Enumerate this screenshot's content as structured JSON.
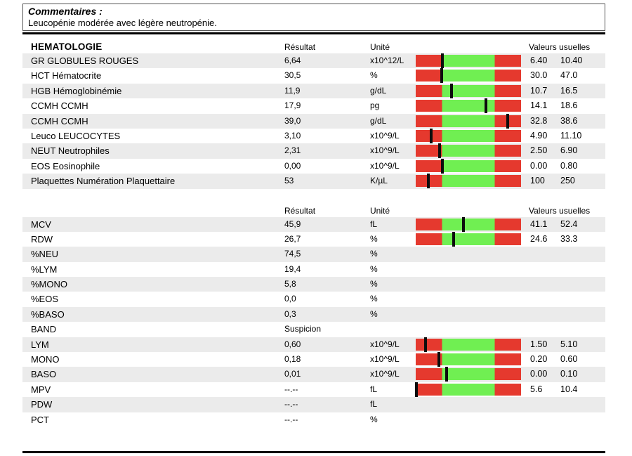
{
  "comment": {
    "title": "Commentaires :",
    "text": "Leucopénie modérée avec légère neutropénie."
  },
  "columns": {
    "result": "Résultat",
    "unit": "Unité",
    "usual": "Valeurs usuelles"
  },
  "colors": {
    "range_low_high": "#e5392e",
    "range_normal": "#70ef52",
    "marker": "#0d0d0d",
    "row_alt_background": "#ebebeb"
  },
  "sections": [
    {
      "title": "HEMATOLOGIE",
      "rows": [
        {
          "name": "GR GLOBULES ROUGES",
          "result": "6,64",
          "unit": "x10^12/L",
          "marker_pct": 25.3,
          "low": "6.40",
          "high": "10.40"
        },
        {
          "name": "HCT Hématocrite",
          "result": "30,5",
          "unit": "%",
          "marker_pct": 24.8,
          "low": "30.0",
          "high": "47.0"
        },
        {
          "name": "HGB Hémoglobinémie",
          "result": "11,9",
          "unit": "g/dL",
          "marker_pct": 34.0,
          "low": "10.7",
          "high": "16.5"
        },
        {
          "name": "CCMH CCMH",
          "result": "17,9",
          "unit": "pg",
          "marker_pct": 66.5,
          "low": "14.1",
          "high": "18.6"
        },
        {
          "name": "CCMH CCMH",
          "result": "39,0",
          "unit": "g/dL",
          "marker_pct": 87.0,
          "low": "32.8",
          "high": "38.6"
        },
        {
          "name": "Leuco LEUCOCYTES",
          "result": "3,10",
          "unit": "x10^9/L",
          "marker_pct": 14.5,
          "low": "4.90",
          "high": "11.10"
        },
        {
          "name": "NEUT Neutrophiles",
          "result": "2,31",
          "unit": "x10^9/L",
          "marker_pct": 22.5,
          "low": "2.50",
          "high": "6.90"
        },
        {
          "name": "EOS Eosinophile",
          "result": "0,00",
          "unit": "x10^9/L",
          "marker_pct": 25.0,
          "low": "0.00",
          "high": "0.80"
        },
        {
          "name": "Plaquettes Numération Plaquettaire",
          "result": "53",
          "unit": "K/µL",
          "marker_pct": 12.0,
          "low": "100",
          "high": "250"
        }
      ]
    },
    {
      "title": "",
      "rows": [
        {
          "name": "MCV",
          "result": "45,9",
          "unit": "fL",
          "marker_pct": 45.5,
          "low": "41.1",
          "high": "52.4"
        },
        {
          "name": "RDW",
          "result": "26,7",
          "unit": "%",
          "marker_pct": 36.0,
          "low": "24.6",
          "high": "33.3"
        },
        {
          "name": "%NEU",
          "result": "74,5",
          "unit": "%",
          "marker_pct": null,
          "low": "",
          "high": ""
        },
        {
          "name": "%LYM",
          "result": "19,4",
          "unit": "%",
          "marker_pct": null,
          "low": "",
          "high": ""
        },
        {
          "name": "%MONO",
          "result": "5,8",
          "unit": "%",
          "marker_pct": null,
          "low": "",
          "high": ""
        },
        {
          "name": "%EOS",
          "result": "0,0",
          "unit": "%",
          "marker_pct": null,
          "low": "",
          "high": ""
        },
        {
          "name": "%BASO",
          "result": "0,3",
          "unit": "%",
          "marker_pct": null,
          "low": "",
          "high": ""
        },
        {
          "name": "BAND",
          "result": "Suspicion",
          "unit": "",
          "marker_pct": null,
          "low": "",
          "high": ""
        },
        {
          "name": "LYM",
          "result": "0,60",
          "unit": "x10^9/L",
          "marker_pct": 9.5,
          "low": "1.50",
          "high": "5.10"
        },
        {
          "name": "MONO",
          "result": "0,18",
          "unit": "x10^9/L",
          "marker_pct": 22.0,
          "low": "0.20",
          "high": "0.60"
        },
        {
          "name": "BASO",
          "result": "0,01",
          "unit": "x10^9/L",
          "marker_pct": 29.5,
          "low": "0.00",
          "high": "0.10"
        },
        {
          "name": "MPV",
          "result": "--.--",
          "unit": "fL",
          "marker_pct": 0.5,
          "low": "5.6",
          "high": "10.4"
        },
        {
          "name": "PDW",
          "result": "--.--",
          "unit": "fL",
          "marker_pct": null,
          "low": "",
          "high": ""
        },
        {
          "name": "PCT",
          "result": "--.--",
          "unit": "%",
          "marker_pct": null,
          "low": "",
          "high": ""
        }
      ]
    }
  ]
}
